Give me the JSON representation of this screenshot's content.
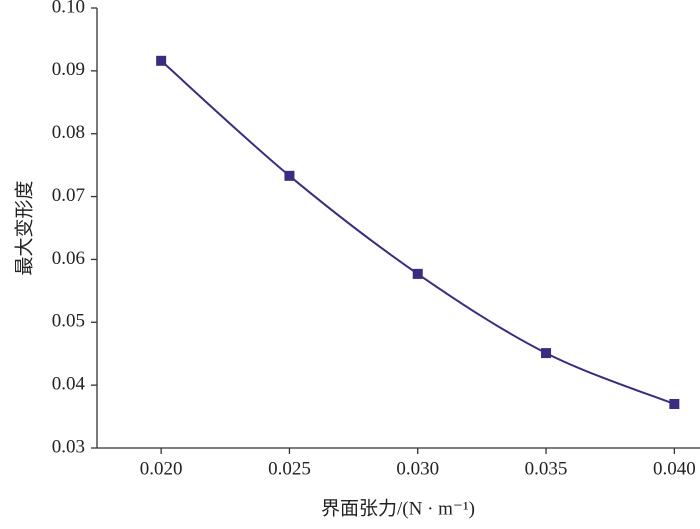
{
  "chart_data": {
    "type": "line",
    "x_label": "界面张力/(N · m⁻¹)",
    "y_label": "最大变形度",
    "x": [
      0.02,
      0.025,
      0.03,
      0.035,
      0.04
    ],
    "series": [
      {
        "color": "#3d2b7f",
        "values": [
          0.0916,
          0.0733,
          0.0577,
          0.0451,
          0.037
        ]
      }
    ],
    "xlim": [
      0.0175,
      0.041
    ],
    "xticks": [
      {
        "value": 0.02,
        "label": "0.020"
      },
      {
        "value": 0.025,
        "label": "0.025"
      },
      {
        "value": 0.03,
        "label": "0.030"
      },
      {
        "value": 0.035,
        "label": "0.035"
      },
      {
        "value": 0.04,
        "label": "0.040"
      }
    ],
    "ylim": [
      0.03,
      0.1
    ],
    "yticks": [
      0.03,
      0.04,
      0.05,
      0.06,
      0.07,
      0.08,
      0.09,
      {
        "value": 0.1,
        "label": "0.10"
      }
    ],
    "grid": false,
    "smooth": true,
    "marker": "square"
  }
}
